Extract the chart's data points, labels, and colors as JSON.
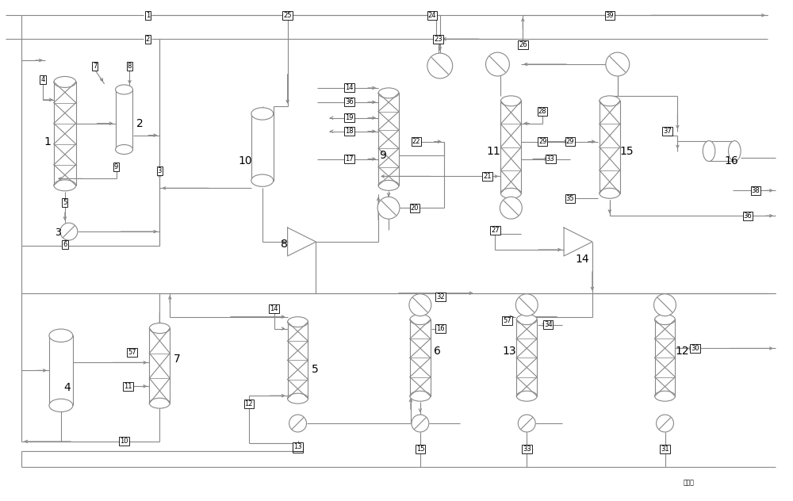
{
  "bg_color": "#ffffff",
  "lc": "#888888",
  "lc2": "#9999bb",
  "lc3": "#888855",
  "figsize": [
    10.0,
    6.32
  ],
  "dpi": 100
}
